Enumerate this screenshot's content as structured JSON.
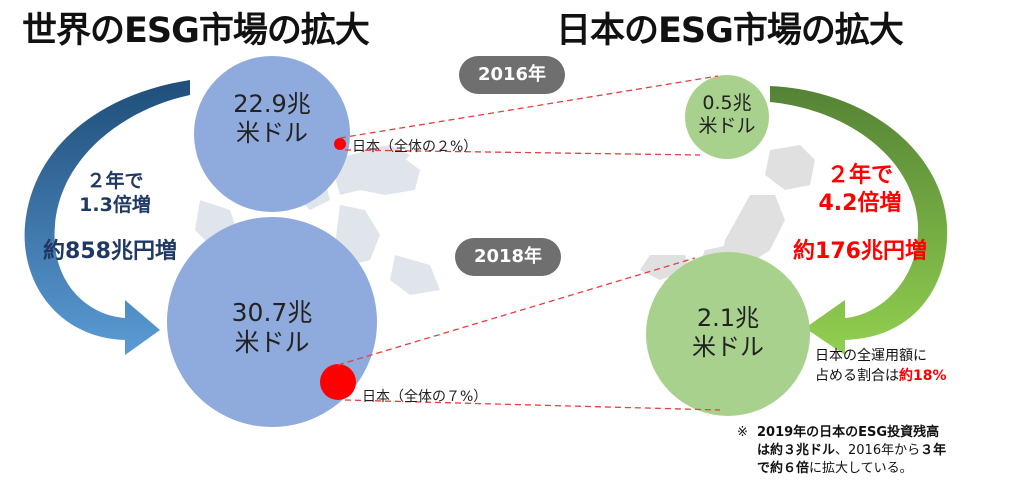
{
  "titles": {
    "world": "世界のESG市場の拡大",
    "japan": "日本のESG市場の拡大"
  },
  "years": {
    "y2016": "2016年",
    "y2018": "2018年"
  },
  "world": {
    "c2016": {
      "value": "22.9兆",
      "unit": "米ドル"
    },
    "c2018": {
      "value": "30.7兆",
      "unit": "米ドル"
    },
    "growth_line1": "２年で",
    "growth_line2": "1.3倍増",
    "growth_line3": "約858兆円増",
    "share2016": "日本（全体の２%）",
    "share2018": "日本（全体の７%）"
  },
  "japan": {
    "c2016": {
      "value": "0.5兆",
      "unit": "米ドル"
    },
    "c2018": {
      "value": "2.1兆",
      "unit": "米ドル"
    },
    "growth_line1": "２年で",
    "growth_line2": "4.2倍増",
    "growth_line3": "約176兆円増",
    "ratio_line1": "日本の全運用額に",
    "ratio_line2_prefix": "占める割合は",
    "ratio_line2_value": "約18%"
  },
  "note": {
    "mark": "※",
    "line1": "2019年の日本のESG投資残高",
    "line2_bold": "は約３兆ドル",
    "line2_rest": "、2016年から",
    "line2_bold2": "３年",
    "line3_bold": "で約６倍",
    "line3_rest": "に拡大している。"
  },
  "colors": {
    "world_circle": "#8faadc",
    "japan_circle": "#a9d18e",
    "world_arrow": "#2e75b6",
    "japan_arrow": "#70ad47",
    "red": "#ff0000",
    "navy": "#1f3864"
  }
}
